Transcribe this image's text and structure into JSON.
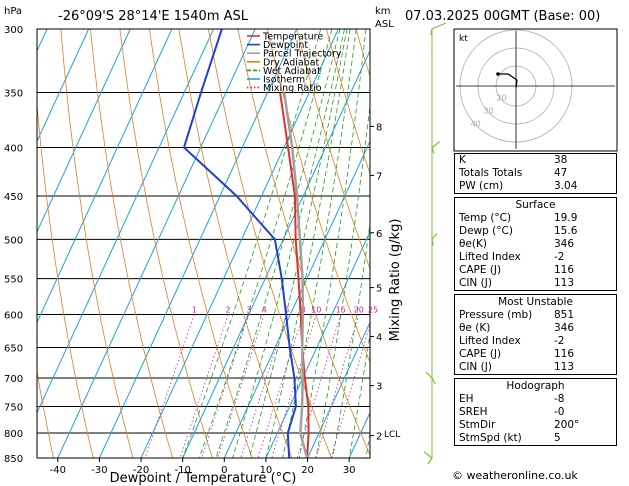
{
  "title": {
    "location": "-26°09'S  28°14'E  1540m  ASL",
    "datetime": "07.03.2025  00GMT  (Base: 00)"
  },
  "axis_labels": {
    "pressure_unit": "hPa",
    "height_unit_top": "km",
    "height_unit_bottom": "ASL",
    "xlabel": "Dewpoint / Temperature (°C)",
    "mixing_ratio_label": "Mixing Ratio (g/kg)"
  },
  "legend": [
    {
      "label": "Temperature",
      "color": "#e0302a"
    },
    {
      "label": "Dewpoint",
      "color": "#1f3fd8"
    },
    {
      "label": "Parcel Trajectory",
      "color": "#a0a0a0"
    },
    {
      "label": "Dry Adiabat",
      "color": "#e08020"
    },
    {
      "label": "Wet Adiabat",
      "color": "#20a020"
    },
    {
      "label": "Isotherm",
      "color": "#20a0e0"
    },
    {
      "label": "Mixing Ratio",
      "color": "#d020a0"
    }
  ],
  "chart_data": {
    "type": "line",
    "subtype": "skew-T log-p diagram",
    "x_axis": {
      "range": [
        -45,
        35
      ],
      "ticks": [
        "-40",
        "-30",
        "-20",
        "-10",
        "0",
        "10",
        "20",
        "30"
      ]
    },
    "pressure_levels": [
      "300",
      "350",
      "400",
      "450",
      "500",
      "550",
      "600",
      "650",
      "700",
      "750",
      "800",
      "850"
    ],
    "height_km_ticks": [
      {
        "label": "8",
        "p": 380
      },
      {
        "label": "7",
        "p": 428
      },
      {
        "label": "6",
        "p": 492
      },
      {
        "label": "5",
        "p": 562
      },
      {
        "label": "4",
        "p": 633
      },
      {
        "label": "3",
        "p": 713
      },
      {
        "label": "2",
        "p": 805
      }
    ],
    "lcl": {
      "label": "LCL",
      "p": 800
    },
    "mixing_ratio_lines": [
      "1",
      "2",
      "3",
      "4",
      "6",
      "8",
      "10",
      "15",
      "20",
      "25"
    ],
    "series": [
      {
        "name": "Temperature",
        "color": "#e0302a",
        "points": [
          [
            850,
            19.9
          ],
          [
            800,
            17.5
          ],
          [
            750,
            14.5
          ],
          [
            700,
            10.5
          ],
          [
            650,
            6.5
          ],
          [
            600,
            2.5
          ],
          [
            550,
            -2
          ],
          [
            500,
            -7
          ],
          [
            450,
            -12
          ],
          [
            400,
            -19
          ],
          [
            350,
            -27
          ]
        ]
      },
      {
        "name": "Dewpoint",
        "color": "#1f3fd8",
        "points": [
          [
            850,
            15.6
          ],
          [
            800,
            12.5
          ],
          [
            750,
            11.5
          ],
          [
            700,
            8
          ],
          [
            650,
            3.5
          ],
          [
            600,
            -1
          ],
          [
            550,
            -6
          ],
          [
            500,
            -12
          ],
          [
            450,
            -26
          ],
          [
            400,
            -44
          ],
          [
            350,
            -46
          ],
          [
            300,
            -48
          ]
        ]
      },
      {
        "name": "Parcel Trajectory",
        "color": "#a0a0a0",
        "points": [
          [
            850,
            19.9
          ],
          [
            800,
            15.5
          ],
          [
            750,
            13
          ],
          [
            700,
            10
          ],
          [
            650,
            6.5
          ],
          [
            600,
            3
          ],
          [
            550,
            -1
          ],
          [
            500,
            -6
          ],
          [
            450,
            -11.5
          ],
          [
            400,
            -18
          ],
          [
            350,
            -26
          ]
        ]
      }
    ]
  },
  "hodograph": {
    "label": "kt",
    "ring_labels": [
      "20",
      "30",
      "40"
    ]
  },
  "indices": [
    {
      "name": "K",
      "value": "38"
    },
    {
      "name": "Totals Totals",
      "value": "47"
    },
    {
      "name": "PW (cm)",
      "value": "3.04"
    }
  ],
  "surface": {
    "header": "Surface",
    "rows": [
      {
        "name": "Temp (°C)",
        "value": "19.9"
      },
      {
        "name": "Dewp (°C)",
        "value": "15.6"
      },
      {
        "name": "θe(K)",
        "value": "346"
      },
      {
        "name": "Lifted Index",
        "value": "-2"
      },
      {
        "name": "CAPE (J)",
        "value": "116"
      },
      {
        "name": "CIN (J)",
        "value": "113"
      }
    ]
  },
  "most_unstable": {
    "header": "Most Unstable",
    "rows": [
      {
        "name": "Pressure (mb)",
        "value": "851"
      },
      {
        "name": "θe (K)",
        "value": "346"
      },
      {
        "name": "Lifted Index",
        "value": "-2"
      },
      {
        "name": "CAPE (J)",
        "value": "116"
      },
      {
        "name": "CIN (J)",
        "value": "113"
      }
    ]
  },
  "hodograph_table": {
    "header": "Hodograph",
    "rows": [
      {
        "name": "EH",
        "value": "-8"
      },
      {
        "name": "SREH",
        "value": "-0"
      },
      {
        "name": "StmDir",
        "value": "200°"
      },
      {
        "name": "StmSpd (kt)",
        "value": "5"
      }
    ]
  },
  "footer": "© weatheronline.co.uk"
}
